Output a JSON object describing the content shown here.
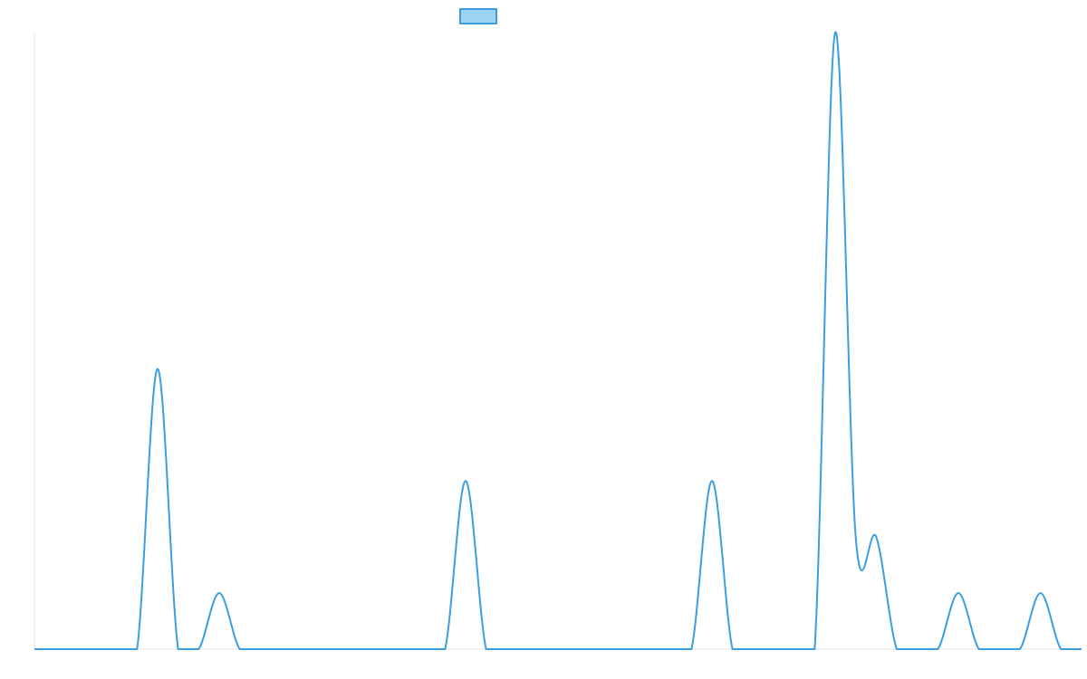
{
  "chart_data": {
    "type": "line",
    "title": "",
    "xlabel": "",
    "ylabel": "",
    "x": [
      0,
      1,
      2,
      3,
      4,
      5,
      6,
      7,
      8,
      9,
      10,
      11,
      12,
      13,
      14,
      15,
      16,
      17,
      18,
      19,
      20,
      21,
      22,
      23,
      24,
      25,
      26,
      27,
      28,
      29,
      30,
      31,
      32,
      33,
      34,
      35,
      36,
      37,
      38,
      39,
      40,
      41,
      42,
      43,
      44,
      45,
      46,
      47,
      48,
      49,
      50,
      51
    ],
    "series": [
      {
        "name": "",
        "values": [
          0,
          0,
          0,
          0,
          0,
          0,
          5,
          0,
          0,
          1,
          0,
          0,
          0,
          0,
          0,
          0,
          0,
          0,
          0,
          0,
          0,
          3,
          0,
          0,
          0,
          0,
          0,
          0,
          0,
          0,
          0,
          0,
          0,
          3,
          0,
          0,
          0,
          0,
          0,
          11,
          2,
          2,
          0,
          0,
          0,
          1,
          0,
          0,
          0,
          1,
          0,
          0
        ],
        "color": "#3a9ee0",
        "legend_fill": "#9dd3f5"
      }
    ],
    "ylim": [
      0,
      11
    ],
    "grid": false,
    "legend_position": "top-center"
  }
}
